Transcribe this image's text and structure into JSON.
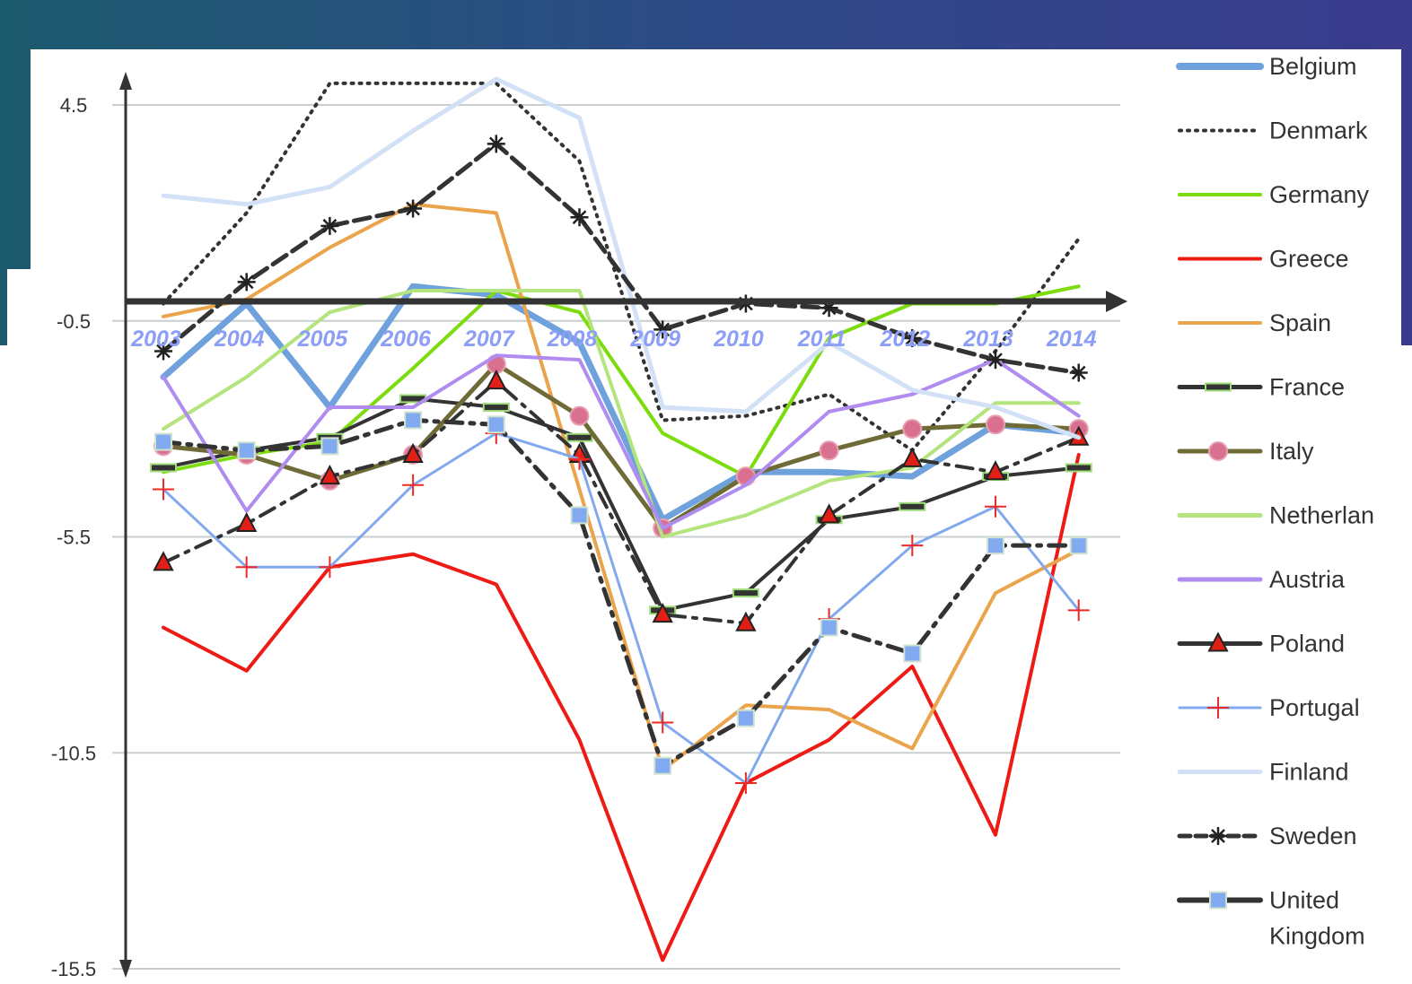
{
  "colors": {
    "background_gradient": [
      "#1c5a6e",
      "#2d4a86",
      "#3a3b8e"
    ],
    "grid": "#c9cfd0",
    "axis": "#333333",
    "xlabel": "#8c9ef5"
  },
  "chart_data": {
    "type": "line",
    "title": "",
    "xlabel": "",
    "ylabel": "",
    "ylim": [
      -15.5,
      4.5
    ],
    "y_ticks": [
      "4.5",
      "-0.5",
      "-5.5",
      "-10.5",
      "-15.5"
    ],
    "x_ticks": [
      "2003",
      "2004",
      "2005",
      "2006",
      "2007",
      "2008",
      "2009",
      "2010",
      "2011",
      "2012",
      "2013",
      "2014"
    ],
    "x": [
      2003,
      2004,
      2005,
      2006,
      2007,
      2008,
      2009,
      2010,
      2011,
      2012,
      2013,
      2014
    ],
    "grid": true,
    "legend_position": "right",
    "series": [
      {
        "name": "Belgium",
        "color": "#6fa2dc",
        "width": 7,
        "dash": "",
        "marker": "none",
        "values": [
          -1.8,
          -0.1,
          -2.5,
          0.3,
          0.1,
          -1.0,
          -5.1,
          -4.0,
          -4.0,
          -4.1,
          -2.9,
          -3.1
        ]
      },
      {
        "name": "Denmark",
        "color": "#333333",
        "width": 4,
        "dash": "2 7",
        "marker": "none",
        "values": [
          -0.1,
          2.0,
          5.0,
          5.0,
          5.0,
          3.2,
          -2.8,
          -2.7,
          -2.2,
          -3.5,
          -1.2,
          1.4
        ]
      },
      {
        "name": "Germany",
        "color": "#7ddc0e",
        "width": 4,
        "dash": "",
        "marker": "none",
        "values": [
          -4.0,
          -3.6,
          -3.3,
          -1.6,
          0.2,
          -0.3,
          -3.1,
          -4.1,
          -0.9,
          -0.1,
          -0.1,
          0.3
        ]
      },
      {
        "name": "Greece",
        "color": "#ee1a14",
        "width": 4,
        "dash": "",
        "marker": "none",
        "values": [
          -7.6,
          -8.6,
          -6.2,
          -5.9,
          -6.6,
          -10.2,
          -15.3,
          -11.2,
          -10.2,
          -8.5,
          -12.4,
          -3.6
        ]
      },
      {
        "name": "Spain",
        "color": "#e9a44c",
        "width": 4,
        "dash": "",
        "marker": "none",
        "values": [
          -0.4,
          0.0,
          1.2,
          2.2,
          2.0,
          -4.4,
          -10.9,
          -9.4,
          -9.5,
          -10.4,
          -6.8,
          -5.8
        ]
      },
      {
        "name": "France",
        "color": "#333333",
        "width": 4,
        "dash": "",
        "marker": "dash",
        "values": [
          -3.9,
          -3.5,
          -3.2,
          -2.3,
          -2.5,
          -3.2,
          -7.2,
          -6.8,
          -5.1,
          -4.8,
          -4.1,
          -3.9
        ]
      },
      {
        "name": "Italy",
        "color": "#6e6b37",
        "width": 5,
        "dash": "",
        "marker": "circle",
        "values": [
          -3.4,
          -3.6,
          -4.2,
          -3.6,
          -1.5,
          -2.7,
          -5.3,
          -4.1,
          -3.5,
          -3.0,
          -2.9,
          -3.0
        ]
      },
      {
        "name": "Netherlands",
        "color": "#b3e47e",
        "width": 4,
        "dash": "",
        "marker": "none",
        "values": [
          -3.0,
          -1.8,
          -0.3,
          0.2,
          0.2,
          0.2,
          -5.5,
          -5.0,
          -4.2,
          -3.9,
          -2.4,
          -2.4
        ]
      },
      {
        "name": "Austria",
        "color": "#b08cf0",
        "width": 4,
        "dash": "",
        "marker": "none",
        "values": [
          -1.8,
          -4.9,
          -2.5,
          -2.5,
          -1.3,
          -1.4,
          -5.3,
          -4.3,
          -2.6,
          -2.2,
          -1.4,
          -2.7
        ]
      },
      {
        "name": "Poland",
        "color": "#333333",
        "width": 4,
        "dash": "18 9 4 9",
        "marker": "triangle",
        "values": [
          -6.1,
          -5.2,
          -4.1,
          -3.6,
          -1.9,
          -3.6,
          -7.3,
          -7.5,
          -5.0,
          -3.7,
          -4.0,
          -3.2
        ]
      },
      {
        "name": "Portugal",
        "color": "#82a9ee",
        "width": 3,
        "dash": "",
        "marker": "plus",
        "values": [
          -4.4,
          -6.2,
          -6.2,
          -4.3,
          -3.1,
          -3.7,
          -9.8,
          -11.2,
          -7.4,
          -5.7,
          -4.8,
          -7.2
        ]
      },
      {
        "name": "Finland",
        "color": "#d2e1f6",
        "width": 5,
        "dash": "",
        "marker": "none",
        "values": [
          2.4,
          2.2,
          2.6,
          3.9,
          5.1,
          4.2,
          -2.5,
          -2.6,
          -1.0,
          -2.1,
          -2.5,
          -3.2
        ]
      },
      {
        "name": "Sweden",
        "color": "#333333",
        "width": 5,
        "dash": "18 8",
        "marker": "asterisk",
        "values": [
          -1.2,
          0.4,
          1.7,
          2.1,
          3.6,
          1.9,
          -0.7,
          -0.1,
          -0.2,
          -0.9,
          -1.4,
          -1.7
        ]
      },
      {
        "name": "United Kingdom",
        "color": "#333333",
        "width": 5,
        "dash": "18 9 4 9",
        "marker": "square",
        "values": [
          -3.3,
          -3.5,
          -3.4,
          -2.8,
          -2.9,
          -5.0,
          -10.8,
          -9.7,
          -7.6,
          -8.2,
          -5.7,
          -5.7
        ]
      }
    ]
  },
  "legend": {
    "entries": [
      {
        "label": "Belgium",
        "color": "#6fa2dc",
        "width": 8,
        "dash": "",
        "marker": "none"
      },
      {
        "label": "Denmark",
        "color": "#333333",
        "width": 4,
        "dash": "2 7",
        "marker": "none"
      },
      {
        "label": "Germany",
        "color": "#7ddc0e",
        "width": 4,
        "dash": "",
        "marker": "none"
      },
      {
        "label": "Greece",
        "color": "#ee1a14",
        "width": 4,
        "dash": "",
        "marker": "none"
      },
      {
        "label": "Spain",
        "color": "#e9a44c",
        "width": 4,
        "dash": "",
        "marker": "none"
      },
      {
        "label": "France",
        "color": "#333333",
        "width": 5,
        "dash": "",
        "marker": "dash"
      },
      {
        "label": "Italy",
        "color": "#6e6b37",
        "width": 5,
        "dash": "",
        "marker": "circle"
      },
      {
        "label": "Netherlan",
        "color": "#b3e47e",
        "width": 5,
        "dash": "",
        "marker": "none"
      },
      {
        "label": "Austria",
        "color": "#b08cf0",
        "width": 5,
        "dash": "",
        "marker": "none"
      },
      {
        "label": "Poland",
        "color": "#333333",
        "width": 5,
        "dash": "",
        "marker": "triangle"
      },
      {
        "label": "Portugal",
        "color": "#82a9ee",
        "width": 3,
        "dash": "",
        "marker": "plus"
      },
      {
        "label": "Finland",
        "color": "#d2e1f6",
        "width": 5,
        "dash": "",
        "marker": "none"
      },
      {
        "label": "Sweden",
        "color": "#333333",
        "width": 5,
        "dash": "12 6",
        "marker": "asterisk"
      },
      {
        "label": "United\nKingdom",
        "color": "#333333",
        "width": 6,
        "dash": "",
        "marker": "square"
      }
    ]
  }
}
